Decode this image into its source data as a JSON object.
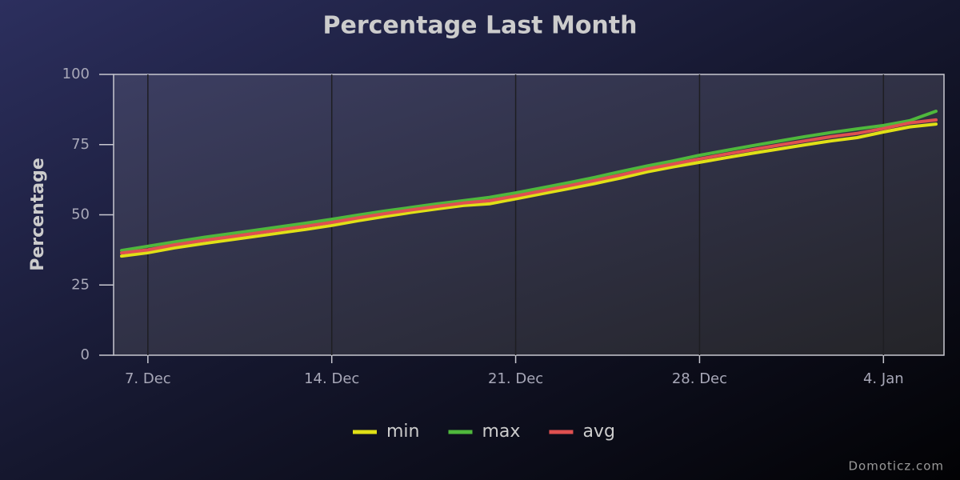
{
  "chart_data": {
    "type": "line",
    "title": "Percentage Last Month",
    "y_label": "Percentage",
    "x": [
      "6. Dec",
      "7. Dec",
      "8. Dec",
      "9. Dec",
      "10. Dec",
      "11. Dec",
      "12. Dec",
      "13. Dec",
      "14. Dec",
      "15. Dec",
      "16. Dec",
      "17. Dec",
      "18. Dec",
      "19. Dec",
      "20. Dec",
      "21. Dec",
      "22. Dec",
      "23. Dec",
      "24. Dec",
      "25. Dec",
      "26. Dec",
      "27. Dec",
      "28. Dec",
      "29. Dec",
      "30. Dec",
      "31. Dec",
      "1. Jan",
      "2. Jan",
      "3. Jan",
      "4. Jan",
      "5. Jan",
      "6. Jan"
    ],
    "xticks": [
      "7. Dec",
      "14. Dec",
      "21. Dec",
      "28. Dec",
      "4. Jan"
    ],
    "series": [
      {
        "name": "min",
        "color": "#e0e016",
        "values": [
          35.3,
          36.5,
          38.2,
          39.6,
          40.9,
          42.2,
          43.5,
          44.8,
          46.2,
          47.9,
          49.4,
          50.8,
          52.1,
          53.3,
          53.9,
          55.7,
          57.5,
          59.3,
          61.1,
          63.1,
          65.3,
          67.1,
          68.7,
          70.3,
          71.9,
          73.4,
          74.9,
          76.3,
          77.5,
          79.5,
          81.3,
          82.3
        ]
      },
      {
        "name": "max",
        "color": "#4fb83c",
        "values": [
          37.3,
          38.8,
          40.3,
          41.8,
          43.1,
          44.4,
          45.7,
          47.0,
          48.4,
          49.9,
          51.3,
          52.6,
          53.9,
          55.0,
          56.2,
          57.8,
          59.6,
          61.4,
          63.3,
          65.4,
          67.4,
          69.2,
          71.2,
          72.9,
          74.6,
          76.2,
          77.8,
          79.3,
          80.6,
          81.8,
          83.5,
          86.9
        ]
      },
      {
        "name": "avg",
        "color": "#e05050",
        "values": [
          36.4,
          37.5,
          39.3,
          40.7,
          42.0,
          43.3,
          44.6,
          45.9,
          47.3,
          48.9,
          50.4,
          51.7,
          53.0,
          54.2,
          55.0,
          56.7,
          58.5,
          60.3,
          62.2,
          64.2,
          66.3,
          68.1,
          69.9,
          71.6,
          73.2,
          74.8,
          76.3,
          77.8,
          79.0,
          80.7,
          82.7,
          83.8
        ]
      }
    ],
    "ylim": [
      0,
      100
    ],
    "yticks": [
      0,
      25,
      50,
      75,
      100
    ],
    "grid": "x",
    "legend": "bottom",
    "credit": "Domoticz.com"
  }
}
